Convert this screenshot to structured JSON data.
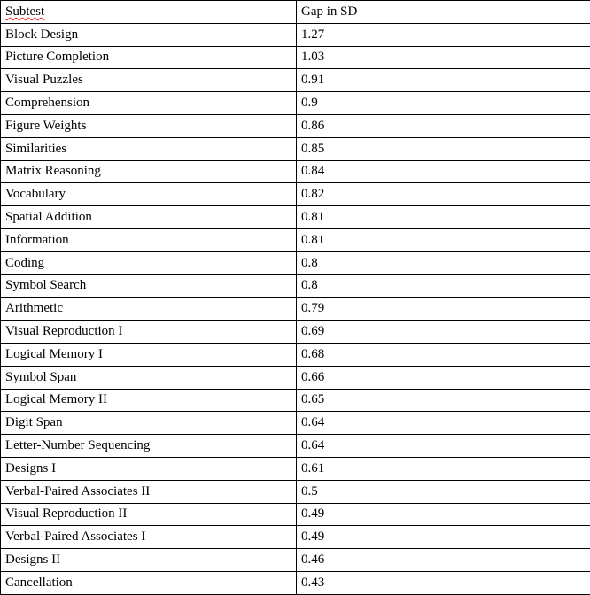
{
  "table": {
    "headers": [
      "Subtest",
      "Gap in SD"
    ],
    "rows": [
      [
        "Block Design",
        "1.27"
      ],
      [
        "Picture Completion",
        "1.03"
      ],
      [
        "Visual Puzzles",
        "0.91"
      ],
      [
        "Comprehension",
        "0.9"
      ],
      [
        "Figure Weights",
        "0.86"
      ],
      [
        "Similarities",
        "0.85"
      ],
      [
        "Matrix Reasoning",
        "0.84"
      ],
      [
        "Vocabulary",
        "0.82"
      ],
      [
        "Spatial Addition",
        "0.81"
      ],
      [
        "Information",
        "0.81"
      ],
      [
        "Coding",
        "0.8"
      ],
      [
        "Symbol Search",
        "0.8"
      ],
      [
        "Arithmetic",
        "0.79"
      ],
      [
        "Visual Reproduction I",
        "0.69"
      ],
      [
        "Logical Memory I",
        "0.68"
      ],
      [
        "Symbol Span",
        "0.66"
      ],
      [
        "Logical Memory II",
        "0.65"
      ],
      [
        "Digit Span",
        "0.64"
      ],
      [
        "Letter-Number Sequencing",
        "0.64"
      ],
      [
        "Designs I",
        "0.61"
      ],
      [
        "Verbal-Paired Associates II",
        "0.5"
      ],
      [
        "Visual Reproduction II",
        "0.49"
      ],
      [
        "Verbal-Paired Associates I",
        "0.49"
      ],
      [
        "Designs II",
        "0.46"
      ],
      [
        "Cancellation",
        "0.43"
      ]
    ]
  }
}
